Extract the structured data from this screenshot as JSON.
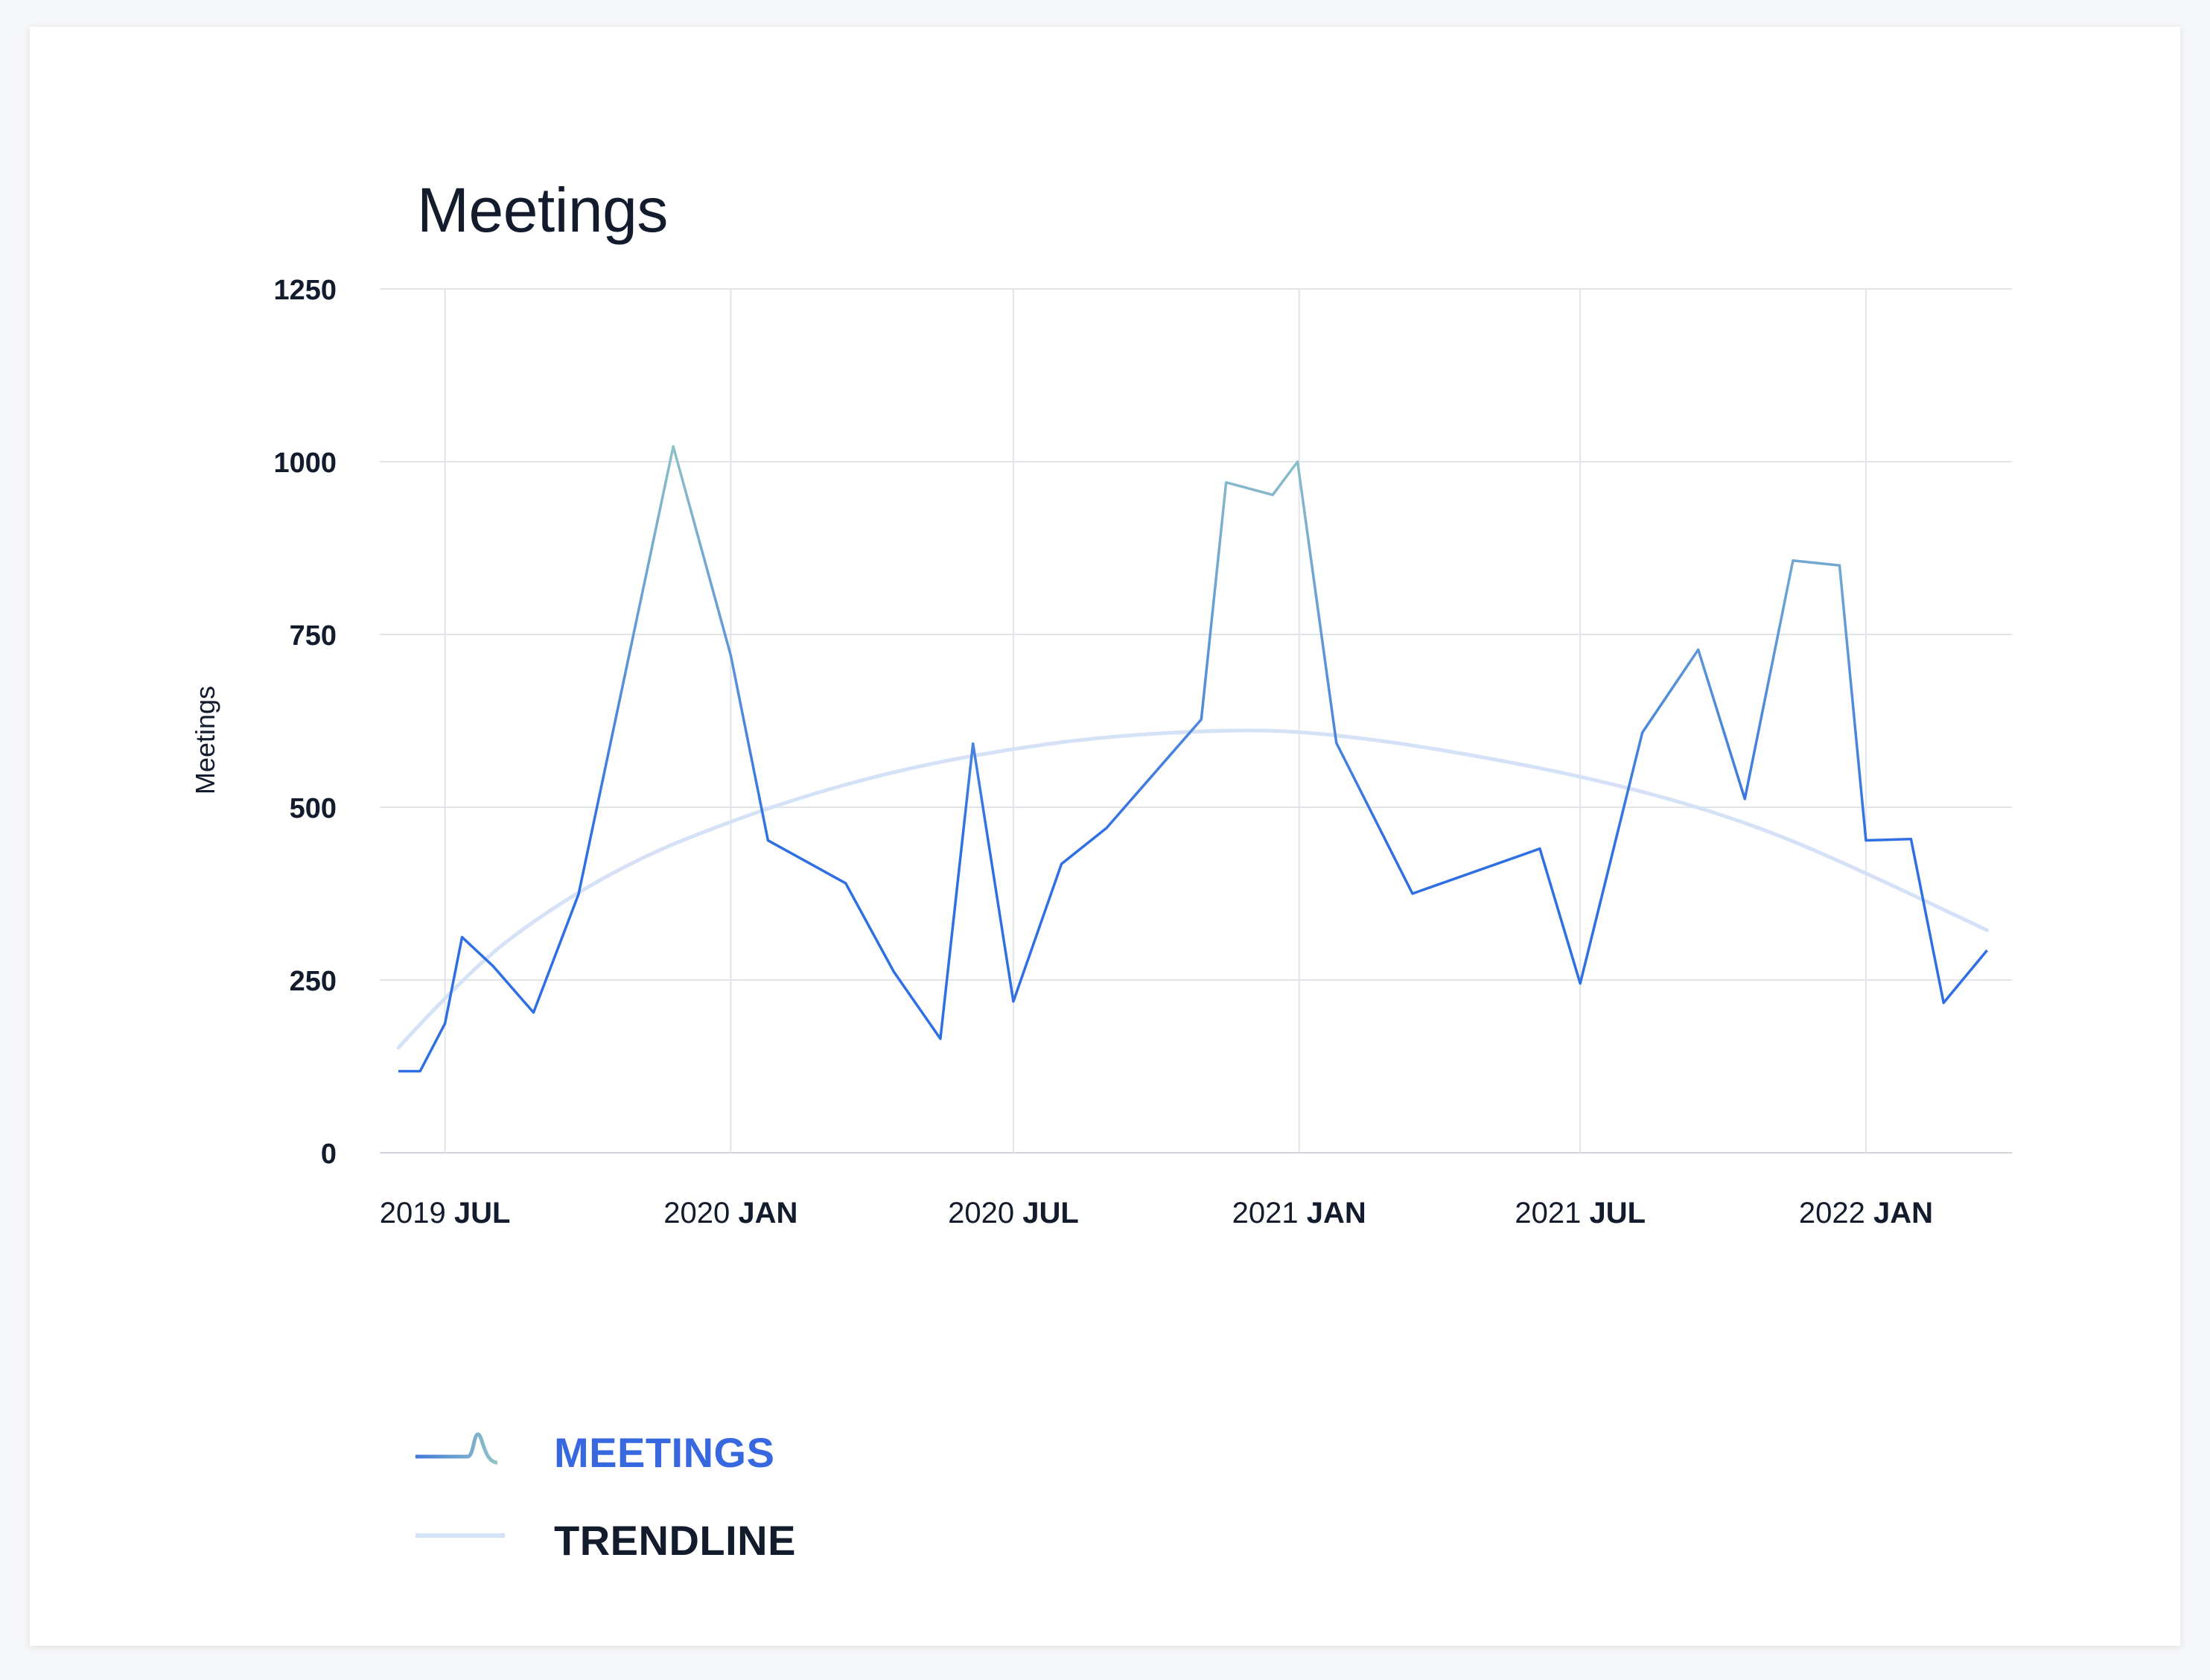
{
  "chart_data": {
    "type": "line",
    "title": "Meetings",
    "ylabel": "Meetings",
    "xlabel": "",
    "ylim": [
      0,
      1250
    ],
    "yticks": [
      0,
      250,
      500,
      750,
      1000,
      1250
    ],
    "xlim": [
      "2019-05-20",
      "2022-04-05"
    ],
    "xticks": [
      {
        "date": "2019-07-01",
        "year": "2019",
        "month": "JUL"
      },
      {
        "date": "2020-01-01",
        "year": "2020",
        "month": "JAN"
      },
      {
        "date": "2020-07-01",
        "year": "2020",
        "month": "JUL"
      },
      {
        "date": "2021-01-01",
        "year": "2021",
        "month": "JAN"
      },
      {
        "date": "2021-07-01",
        "year": "2021",
        "month": "JUL"
      },
      {
        "date": "2022-01-01",
        "year": "2022",
        "month": "JAN"
      }
    ],
    "grid": true,
    "legend_position": "bottom-left",
    "series": [
      {
        "name": "MEETINGS",
        "color_low": "#2f6fe4",
        "color_high": "#93c4c7",
        "points": [
          {
            "x": "2019-06-01",
            "y": 118
          },
          {
            "x": "2019-06-15",
            "y": 118
          },
          {
            "x": "2019-07-01",
            "y": 187
          },
          {
            "x": "2019-07-12",
            "y": 312
          },
          {
            "x": "2019-08-01",
            "y": 270
          },
          {
            "x": "2019-08-27",
            "y": 203
          },
          {
            "x": "2019-09-25",
            "y": 374
          },
          {
            "x": "2019-11-25",
            "y": 1022
          },
          {
            "x": "2020-01-01",
            "y": 720
          },
          {
            "x": "2020-01-25",
            "y": 452
          },
          {
            "x": "2020-03-15",
            "y": 390
          },
          {
            "x": "2020-04-15",
            "y": 262
          },
          {
            "x": "2020-05-15",
            "y": 165
          },
          {
            "x": "2020-06-05",
            "y": 592
          },
          {
            "x": "2020-07-01",
            "y": 219
          },
          {
            "x": "2020-08-01",
            "y": 418
          },
          {
            "x": "2020-08-30",
            "y": 470
          },
          {
            "x": "2020-10-30",
            "y": 627
          },
          {
            "x": "2020-11-15",
            "y": 970
          },
          {
            "x": "2020-12-15",
            "y": 952
          },
          {
            "x": "2020-12-31",
            "y": 1000
          },
          {
            "x": "2021-01-25",
            "y": 593
          },
          {
            "x": "2021-03-15",
            "y": 375
          },
          {
            "x": "2021-06-05",
            "y": 440
          },
          {
            "x": "2021-07-01",
            "y": 245
          },
          {
            "x": "2021-08-10",
            "y": 608
          },
          {
            "x": "2021-09-15",
            "y": 728
          },
          {
            "x": "2021-10-15",
            "y": 512
          },
          {
            "x": "2021-11-15",
            "y": 857
          },
          {
            "x": "2021-12-15",
            "y": 850
          },
          {
            "x": "2022-01-01",
            "y": 452
          },
          {
            "x": "2022-01-30",
            "y": 454
          },
          {
            "x": "2022-02-20",
            "y": 217
          },
          {
            "x": "2022-03-20",
            "y": 293
          }
        ]
      },
      {
        "name": "TRENDLINE",
        "color": "#d5e1f7",
        "points": [
          {
            "x": "2019-06-01",
            "y": 152
          },
          {
            "x": "2019-07-15",
            "y": 260
          },
          {
            "x": "2019-09-01",
            "y": 345
          },
          {
            "x": "2019-11-01",
            "y": 425
          },
          {
            "x": "2020-01-01",
            "y": 480
          },
          {
            "x": "2020-03-01",
            "y": 525
          },
          {
            "x": "2020-05-01",
            "y": 560
          },
          {
            "x": "2020-07-01",
            "y": 585
          },
          {
            "x": "2020-09-01",
            "y": 603
          },
          {
            "x": "2020-11-15",
            "y": 612
          },
          {
            "x": "2021-01-01",
            "y": 610
          },
          {
            "x": "2021-03-01",
            "y": 595
          },
          {
            "x": "2021-05-01",
            "y": 572
          },
          {
            "x": "2021-07-01",
            "y": 545
          },
          {
            "x": "2021-09-01",
            "y": 510
          },
          {
            "x": "2021-11-01",
            "y": 465
          },
          {
            "x": "2022-01-01",
            "y": 405
          },
          {
            "x": "2022-03-20",
            "y": 322
          }
        ]
      }
    ]
  },
  "legend": {
    "items": [
      {
        "label": "MEETINGS",
        "color": "#3868e0"
      },
      {
        "label": "TRENDLINE",
        "color": "#121c2d"
      }
    ]
  }
}
